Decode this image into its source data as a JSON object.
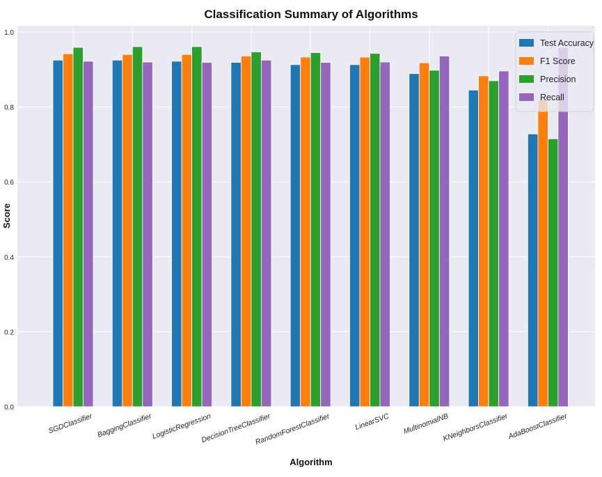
{
  "chart_data": {
    "type": "bar",
    "title": "Classification Summary of Algorithms",
    "xlabel": "Algorithm",
    "ylabel": "Score",
    "ylim": [
      0,
      1.017
    ],
    "yticks": [
      "0.0",
      "0.2",
      "0.4",
      "0.6",
      "0.8",
      "1.0"
    ],
    "ytick_values": [
      0,
      0.2,
      0.4,
      0.6,
      0.8,
      1.0
    ],
    "grid": true,
    "legend_position": "top-right",
    "categories": [
      "SGDClassifier",
      "BaggingClassifier",
      "LogisticRegression",
      "DecisionTreeClassifier",
      "RandomForestClassifier",
      "LinearSVC",
      "MultinomialNB",
      "KNeighborsClassifier",
      "AdaBoostClassifier"
    ],
    "series": [
      {
        "name": "Test Accuracy",
        "color": "#1f77b4",
        "values": [
          0.925,
          0.925,
          0.922,
          0.919,
          0.913,
          0.913,
          0.889,
          0.845,
          0.728
        ]
      },
      {
        "name": "F1 Score",
        "color": "#ff7f0e",
        "values": [
          0.942,
          0.94,
          0.94,
          0.936,
          0.933,
          0.933,
          0.918,
          0.883,
          0.82
        ]
      },
      {
        "name": "Precision",
        "color": "#2ca02c",
        "values": [
          0.959,
          0.961,
          0.961,
          0.947,
          0.945,
          0.943,
          0.898,
          0.87,
          0.715
        ]
      },
      {
        "name": "Recall",
        "color": "#9467bd",
        "values": [
          0.922,
          0.92,
          0.919,
          0.925,
          0.919,
          0.92,
          0.936,
          0.896,
          0.959
        ]
      }
    ]
  }
}
